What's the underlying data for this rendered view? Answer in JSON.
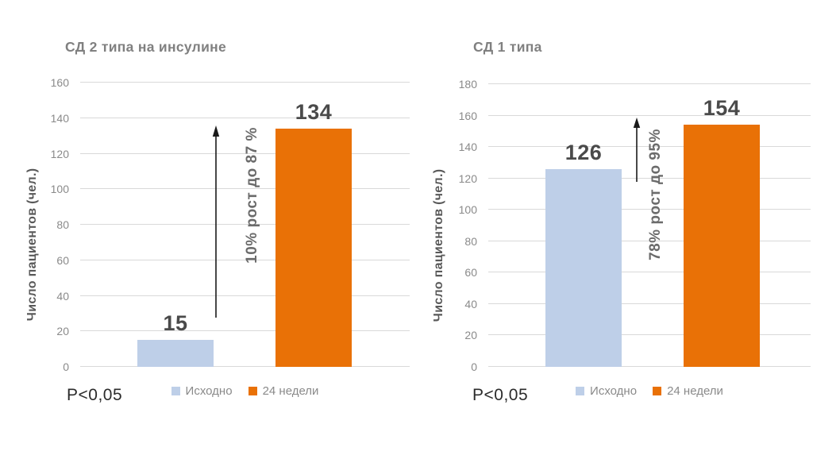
{
  "colors": {
    "baseline": "#BECFE8",
    "week24": "#E97106",
    "gridline": "#D9D9D9",
    "arrow": "#1A1A1A",
    "title_gray": "#808080",
    "value_label_gray": "#4A4A4A"
  },
  "chart_data": [
    {
      "type": "bar",
      "title": "СД 2 типа на инсулине",
      "ylabel": "Число пациентов (чел.)",
      "xlabel": "",
      "ylim": [
        0,
        160
      ],
      "yticks": [
        0,
        20,
        40,
        60,
        80,
        100,
        120,
        140,
        160
      ],
      "grid": "horizontal",
      "legend_position": "bottom",
      "categories": [
        "Исходно",
        "24 недели"
      ],
      "bars": [
        {
          "name": "Исходно",
          "value": 15,
          "label": "15",
          "color_key": "baseline"
        },
        {
          "name": "24 недели",
          "value": 134,
          "label": "134",
          "color_key": "week24"
        }
      ],
      "annotation": "10% рост до 87 %",
      "p_value": "P<0,05"
    },
    {
      "type": "bar",
      "title": "СД 1 типа",
      "ylabel": "Число пациентов (чел.)",
      "xlabel": "",
      "ylim": [
        0,
        180
      ],
      "yticks": [
        0,
        20,
        40,
        60,
        80,
        100,
        120,
        140,
        160,
        180
      ],
      "grid": "horizontal",
      "legend_position": "bottom",
      "categories": [
        "Исходно",
        "24 недели"
      ],
      "bars": [
        {
          "name": "Исходно",
          "value": 126,
          "label": "126",
          "color_key": "baseline"
        },
        {
          "name": "24 недели",
          "value": 154,
          "label": "154",
          "color_key": "week24"
        }
      ],
      "annotation": "78% рост до 95%",
      "p_value": "P<0,05"
    }
  ]
}
